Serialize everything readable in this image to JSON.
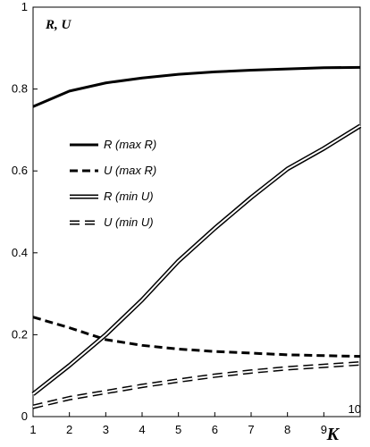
{
  "chart_data": {
    "type": "line",
    "title": "",
    "xlabel": "K",
    "ylabel": "R, U",
    "x": [
      1,
      2,
      3,
      4,
      5,
      6,
      7,
      8,
      9,
      10
    ],
    "xlim": [
      1,
      10
    ],
    "ylim": [
      0,
      1
    ],
    "x_ticks": [
      "1",
      "2",
      "3",
      "4",
      "5",
      "6",
      "7",
      "8",
      "9",
      "10"
    ],
    "y_ticks": [
      "0",
      "0.2",
      "0.4",
      "0.6",
      "0.8",
      "1"
    ],
    "grid": false,
    "legend_position": "center-left",
    "series": [
      {
        "name": "R (max R)",
        "style": "solid-thick",
        "color": "#000000",
        "values": [
          0.757,
          0.795,
          0.815,
          0.827,
          0.836,
          0.842,
          0.846,
          0.849,
          0.852,
          0.853
        ]
      },
      {
        "name": "U (max R)",
        "style": "dashed-thick",
        "color": "#000000",
        "values": [
          0.243,
          0.217,
          0.188,
          0.174,
          0.165,
          0.159,
          0.155,
          0.151,
          0.149,
          0.147
        ]
      },
      {
        "name": "R (min U)",
        "style": "double-solid",
        "color": "#000000",
        "values": [
          0.055,
          0.125,
          0.2,
          0.285,
          0.38,
          0.46,
          0.535,
          0.605,
          0.655,
          0.71
        ]
      },
      {
        "name": "U (min U)",
        "style": "double-dashed",
        "color": "#000000",
        "values": [
          0.024,
          0.045,
          0.06,
          0.075,
          0.088,
          0.1,
          0.11,
          0.118,
          0.124,
          0.13
        ]
      }
    ]
  }
}
